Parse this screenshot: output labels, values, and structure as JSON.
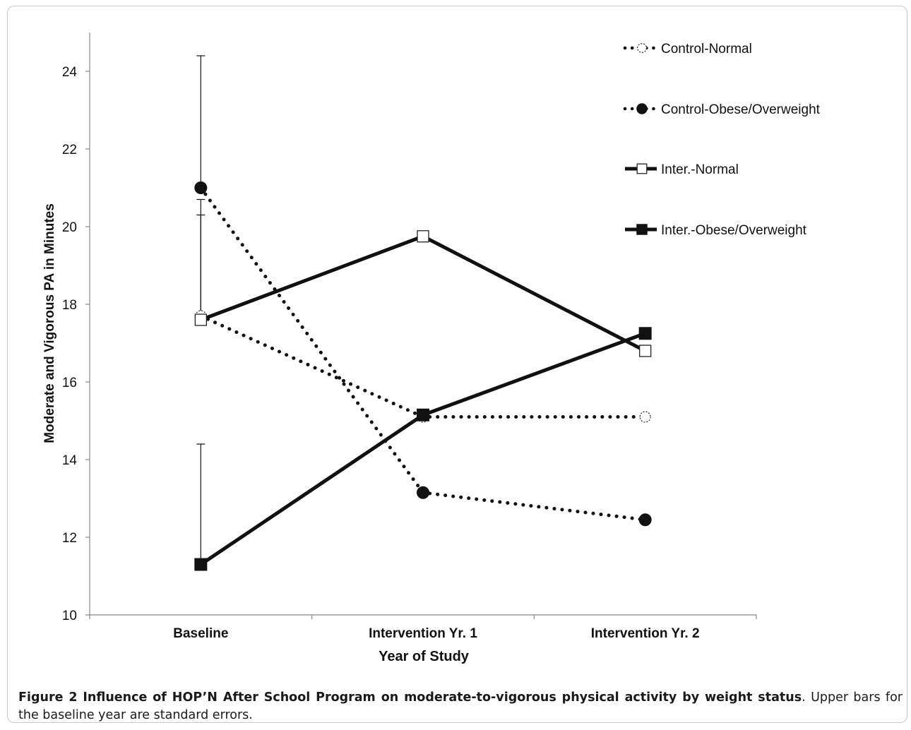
{
  "chart_data": {
    "type": "line",
    "title": "",
    "xlabel": "Year of  Study",
    "ylabel": "Moderate and Vigorous PA in Minutes",
    "categories": [
      "Baseline",
      "Intervention Yr. 1",
      "Intervention Yr. 2"
    ],
    "ylim": [
      10,
      25
    ],
    "yticks": [
      10,
      12,
      14,
      16,
      18,
      20,
      22,
      24
    ],
    "grid": false,
    "legend_position": "top-right",
    "series": [
      {
        "name": "Control-Normal",
        "values": [
          17.7,
          15.1,
          15.1
        ],
        "line": "dotted",
        "marker": "circle-open",
        "error_upper": [
          20.7,
          null,
          null
        ]
      },
      {
        "name": "Control-Obese/Overweight",
        "values": [
          21.0,
          13.15,
          12.45
        ],
        "line": "dotted",
        "marker": "circle-filled",
        "error_upper": [
          24.4,
          null,
          null
        ]
      },
      {
        "name": "Inter.-Normal",
        "values": [
          17.6,
          19.75,
          16.8
        ],
        "line": "solid",
        "marker": "square-open",
        "error_upper": [
          20.3,
          null,
          null
        ]
      },
      {
        "name": "Inter.-Obese/Overweight",
        "values": [
          11.3,
          15.15,
          17.25
        ],
        "line": "solid",
        "marker": "square-filled",
        "error_upper": [
          14.4,
          null,
          null
        ]
      }
    ]
  },
  "caption": {
    "lead": "Figure 2 Influence of HOP’N After School Program on moderate-to-vigorous physical activity by weight status",
    "rest": ". Upper bars for the baseline year are standard errors."
  }
}
